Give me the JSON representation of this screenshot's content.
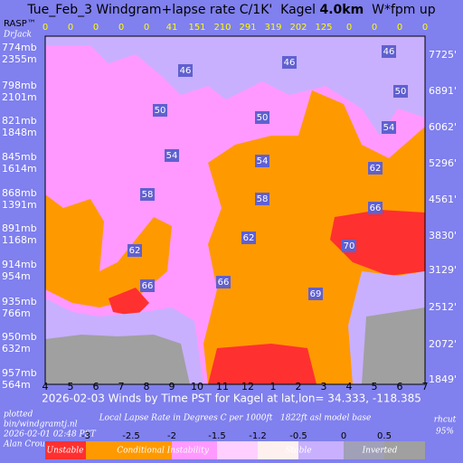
{
  "chart_data": {
    "type": "windgram",
    "title_start": "Tue_Feb_3 Windgram+lapse rate C/1K'  Kagel ",
    "title_bold": "4.0km",
    "title_end": "  W*fpm up",
    "brand": "RASP™",
    "brand_author": "DrJack",
    "top_values": [
      0,
      0,
      0,
      0,
      0,
      41,
      151,
      210,
      291,
      319,
      202,
      125,
      0,
      0,
      0,
      0
    ],
    "categories": [
      "4",
      "5",
      "6",
      "7",
      "8",
      "9",
      "10",
      "11",
      "12",
      "1",
      "2",
      "3",
      "4",
      "5",
      "6",
      "7"
    ],
    "pressure_labels": [
      "774mb",
      "798mb",
      "821mb",
      "845mb",
      "868mb",
      "891mb",
      "914mb",
      "935mb",
      "950mb",
      "957mb"
    ],
    "altitude_m_labels": [
      "2355m",
      "2101m",
      "1848m",
      "1614m",
      "1391m",
      "1168m",
      "954m",
      "766m",
      "632m",
      "564m"
    ],
    "altitude_ft_labels": [
      "7725'",
      "6891'",
      "6062'",
      "5296'",
      "4561'",
      "3830'",
      "3129'",
      "2512'",
      "2072'",
      "1849'"
    ],
    "contour_labels": [
      46,
      46,
      46,
      50,
      50,
      50,
      54,
      54,
      54,
      58,
      58,
      62,
      62,
      62,
      66,
      66,
      66,
      70,
      69
    ],
    "x_title": "2026-02-03 Winds by Time PST for Kagel at lat,lon= 34.333, -118.385",
    "plotted": "plotted",
    "script_name": "bin/windgramtj.nl",
    "plot_time": "2026-02-01 02:48 PST",
    "author": "Alan Crouse",
    "scale_title": "Local Lapse Rate in Degrees C per 1000ft   1822ft asl model base",
    "rhcut_label": "rhcut",
    "rhcut_value": "95%",
    "scale_ticks": [
      -3,
      -2.5,
      -2,
      -1.5,
      -1.2,
      -0.5,
      0,
      0.5
    ],
    "scale_categories": [
      "Unstable",
      "Conditional Instability",
      "Stable",
      "Inverted"
    ]
  }
}
